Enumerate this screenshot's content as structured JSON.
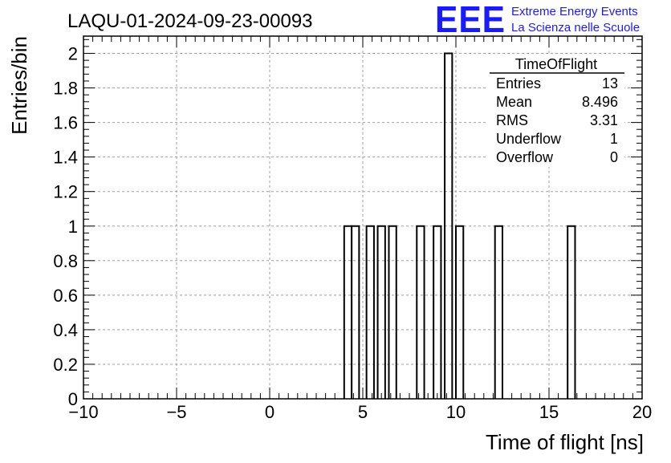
{
  "header": {
    "run_title": "LAQU-01-2024-09-23-00093",
    "logo_text": "EEE",
    "logo_line1": "Extreme Energy Events",
    "logo_line2": "La Scienza nelle Scuole"
  },
  "stats_box": {
    "title": "TimeOfFlight",
    "rows": [
      {
        "label": "Entries",
        "value": "13"
      },
      {
        "label": "Mean",
        "value": "8.496"
      },
      {
        "label": "RMS",
        "value": "3.31"
      },
      {
        "label": "Underflow",
        "value": "1"
      },
      {
        "label": "Overflow",
        "value": "0"
      }
    ]
  },
  "colors": {
    "background": "#ffffff",
    "frame": "#000000",
    "grid": "#a0a0a0",
    "histogram": "#000000",
    "logo": "#1a1aff"
  },
  "chart_data": {
    "type": "bar",
    "histogram_style": "step-outline",
    "xlabel": "Time of flight [ns]",
    "ylabel": "Entries/bin",
    "xlim": [
      -10,
      20
    ],
    "ylim": [
      0,
      2.1
    ],
    "bin_width": 0.4,
    "grid": true,
    "x_ticks": [
      -10,
      -5,
      0,
      5,
      10,
      15,
      20
    ],
    "x_tick_labels": [
      "−10",
      "−5",
      "0",
      "5",
      "10",
      "15",
      "20"
    ],
    "y_ticks": [
      0,
      0.2,
      0.4,
      0.6,
      0.8,
      1,
      1.2,
      1.4,
      1.6,
      1.8,
      2
    ],
    "y_tick_labels": [
      "0",
      "0.2",
      "0.4",
      "0.6",
      "0.8",
      "1",
      "1.2",
      "1.4",
      "1.6",
      "1.8",
      "2"
    ],
    "bins": [
      {
        "x_low": 4.0,
        "x_high": 4.4,
        "count": 1
      },
      {
        "x_low": 4.4,
        "x_high": 4.8,
        "count": 1
      },
      {
        "x_low": 5.2,
        "x_high": 5.6,
        "count": 1
      },
      {
        "x_low": 5.8,
        "x_high": 6.2,
        "count": 1
      },
      {
        "x_low": 6.4,
        "x_high": 6.8,
        "count": 1
      },
      {
        "x_low": 7.9,
        "x_high": 8.3,
        "count": 1
      },
      {
        "x_low": 8.8,
        "x_high": 9.2,
        "count": 1
      },
      {
        "x_low": 9.4,
        "x_high": 9.8,
        "count": 2
      },
      {
        "x_low": 10.0,
        "x_high": 10.4,
        "count": 1
      },
      {
        "x_low": 12.1,
        "x_high": 12.5,
        "count": 1
      },
      {
        "x_low": 16.0,
        "x_high": 16.4,
        "count": 1
      }
    ]
  }
}
